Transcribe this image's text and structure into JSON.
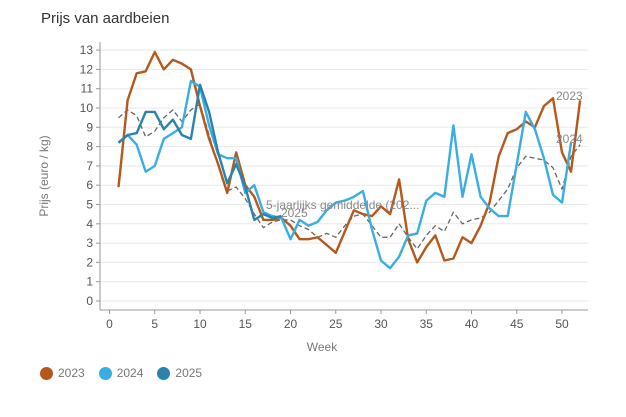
{
  "title": "Prijs van aardbeien",
  "chart_data": {
    "type": "line",
    "title": "Prijs van aardbeien",
    "xlabel": "Week",
    "ylabel": "Prijs (euro / kg)",
    "xlim": [
      0,
      52
    ],
    "ylim": [
      0,
      13
    ],
    "xticks": [
      0,
      5,
      10,
      15,
      20,
      25,
      30,
      35,
      40,
      45,
      50
    ],
    "yticks": [
      0,
      1,
      2,
      3,
      4,
      5,
      6,
      7,
      8,
      9,
      10,
      11,
      12,
      13
    ],
    "grid": "horizontal",
    "legend_position": "bottom-left",
    "series": [
      {
        "name": "5-jaarlijks gemiddelde (202...",
        "color": "#666666",
        "style": "dashed",
        "in_legend": false,
        "x": [
          1,
          2,
          3,
          4,
          5,
          6,
          7,
          8,
          9,
          10,
          11,
          12,
          13,
          14,
          15,
          16,
          17,
          18,
          19,
          20,
          21,
          22,
          23,
          24,
          25,
          26,
          27,
          28,
          29,
          30,
          31,
          32,
          33,
          34,
          35,
          36,
          37,
          38,
          39,
          40,
          41,
          42,
          43,
          44,
          45,
          46,
          47,
          48,
          49,
          50,
          51,
          52
        ],
        "values": [
          9.5,
          9.9,
          9.6,
          8.5,
          8.8,
          9.5,
          9.9,
          9.3,
          9.9,
          10.2,
          8.6,
          7.0,
          5.7,
          5.9,
          5.3,
          4.5,
          3.8,
          4.1,
          4.2,
          4.2,
          3.9,
          3.7,
          3.3,
          3.5,
          3.3,
          3.9,
          4.4,
          4.5,
          3.9,
          3.3,
          3.3,
          4.0,
          3.3,
          2.7,
          3.4,
          3.9,
          3.6,
          4.6,
          4.0,
          4.2,
          4.3,
          4.6,
          5.2,
          5.8,
          6.9,
          7.5,
          7.4,
          7.3,
          6.9,
          5.8,
          7.5,
          8.1
        ]
      },
      {
        "name": "2023",
        "color": "#b5581c",
        "style": "solid",
        "in_legend": true,
        "end_label": "2023",
        "x": [
          1,
          2,
          3,
          4,
          5,
          6,
          7,
          8,
          9,
          10,
          11,
          12,
          13,
          14,
          15,
          16,
          17,
          18,
          19,
          20,
          21,
          22,
          23,
          24,
          25,
          26,
          27,
          28,
          29,
          30,
          31,
          32,
          33,
          34,
          35,
          36,
          37,
          38,
          39,
          40,
          41,
          42,
          43,
          44,
          45,
          46,
          47,
          48,
          49,
          50,
          51,
          52
        ],
        "values": [
          5.9,
          10.4,
          11.8,
          11.9,
          12.9,
          12.0,
          12.5,
          12.3,
          12.0,
          10.1,
          8.4,
          7.1,
          5.6,
          7.7,
          6.0,
          5.4,
          4.2,
          4.2,
          4.3,
          3.9,
          3.2,
          3.2,
          3.3,
          2.9,
          2.5,
          3.6,
          4.7,
          4.5,
          4.4,
          4.9,
          4.5,
          6.3,
          3.2,
          2.0,
          2.8,
          3.4,
          2.1,
          2.2,
          3.3,
          3.0,
          3.9,
          5.1,
          7.5,
          8.7,
          8.9,
          9.3,
          9.0,
          10.1,
          10.5,
          7.7,
          6.7,
          10.4
        ]
      },
      {
        "name": "2024",
        "color": "#3aaee0",
        "style": "solid",
        "in_legend": true,
        "end_label": "2024",
        "x": [
          1,
          2,
          3,
          4,
          5,
          6,
          7,
          8,
          9,
          10,
          11,
          12,
          13,
          14,
          15,
          16,
          17,
          18,
          19,
          20,
          21,
          22,
          23,
          24,
          25,
          26,
          27,
          28,
          29,
          30,
          31,
          32,
          33,
          34,
          35,
          36,
          37,
          38,
          39,
          40,
          41,
          42,
          43,
          44,
          45,
          46,
          47,
          48,
          49,
          50,
          51
        ],
        "values": [
          8.2,
          8.6,
          8.1,
          6.7,
          7.0,
          8.4,
          8.7,
          9.0,
          11.4,
          11.1,
          9.1,
          7.6,
          7.4,
          7.4,
          5.6,
          6.0,
          4.6,
          4.4,
          4.3,
          3.2,
          4.2,
          3.9,
          4.1,
          4.7,
          5.1,
          5.2,
          5.4,
          5.7,
          3.7,
          2.1,
          1.7,
          2.3,
          3.4,
          3.5,
          5.2,
          5.6,
          5.4,
          9.1,
          5.4,
          7.6,
          5.4,
          4.8,
          4.4,
          4.4,
          7.1,
          9.8,
          8.9,
          7.4,
          5.5,
          5.1,
          8.2
        ]
      },
      {
        "name": "2025",
        "color": "#2a83ad",
        "style": "solid",
        "in_legend": true,
        "end_label": "2025",
        "x": [
          1,
          2,
          3,
          4,
          5,
          6,
          7,
          8,
          9,
          10,
          11,
          12,
          13,
          14,
          15,
          16,
          17,
          18,
          19
        ],
        "values": [
          8.2,
          8.6,
          8.7,
          9.8,
          9.8,
          8.9,
          9.4,
          8.6,
          8.4,
          11.2,
          9.8,
          7.7,
          6.1,
          7.1,
          5.9,
          4.2,
          4.5,
          4.3,
          4.4
        ]
      }
    ],
    "annotations": [
      {
        "text": "5-jaarlijks gemiddelde (202...",
        "series": "5-jaarlijks gemiddelde (202..."
      },
      {
        "text": "2025",
        "series": "2025"
      },
      {
        "text": "2023",
        "series": "2023"
      },
      {
        "text": "2024",
        "series": "2024"
      }
    ]
  },
  "legend": {
    "items": [
      {
        "label": "2023",
        "color": "#b5581c"
      },
      {
        "label": "2024",
        "color": "#3aaee0"
      },
      {
        "label": "2025",
        "color": "#2a83ad"
      }
    ]
  }
}
